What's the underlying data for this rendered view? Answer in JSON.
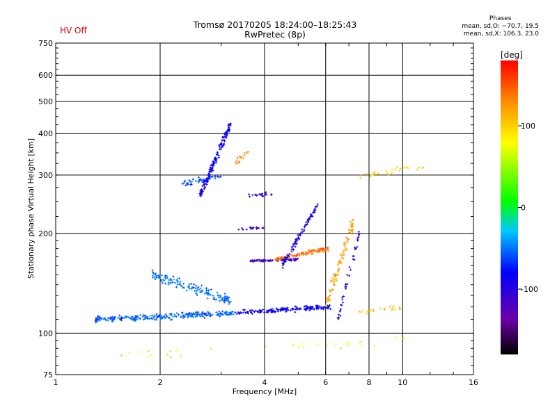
{
  "hv_status": "HV Off",
  "stats": {
    "heading": "Phases",
    "line1": "mean, sd,O: −70.7, 19.5",
    "line2": "mean, sd,X: 106.3, 23.0"
  },
  "colorbar": {
    "unit_label": "[deg]",
    "ticks": [
      100,
      0,
      -100
    ],
    "range": [
      -180,
      180
    ],
    "colormap": "rainbow: black-purple-blue-cyan-green-yellow-orange-red"
  },
  "chart_data": {
    "type": "scatter",
    "title": "Tromsø 20170205 18:24:00–18:25:43",
    "subtitle": "RwPretec (8p)",
    "xlabel": "Frequency [MHz]",
    "ylabel": "Stationary phase Virtual Height [km]",
    "xscale": "log",
    "yscale": "log",
    "xlim": [
      1,
      16
    ],
    "ylim": [
      75,
      750
    ],
    "xticks": [
      1,
      2,
      4,
      6,
      8,
      10,
      16
    ],
    "yticks": [
      75,
      100,
      200,
      300,
      400,
      500,
      600,
      750
    ],
    "grid": true,
    "traces": [
      {
        "x_range": [
          1.3,
          3.3
        ],
        "y_start": 110,
        "y_end": 115,
        "phase": -55,
        "spread": 0.03,
        "count": 260
      },
      {
        "x_range": [
          3.3,
          6.2
        ],
        "y_start": 115,
        "y_end": 120,
        "phase": -85,
        "spread": 0.025,
        "count": 160
      },
      {
        "x_range": [
          3.6,
          5.0
        ],
        "y_start": 165,
        "y_end": 167,
        "phase": -110,
        "spread": 0.01,
        "count": 80
      },
      {
        "x_range": [
          4.3,
          6.1
        ],
        "y_start": 167,
        "y_end": 180,
        "phase": 140,
        "spread": 0.02,
        "count": 110
      },
      {
        "x_range": [
          4.5,
          5.7
        ],
        "y_start": 160,
        "y_end": 245,
        "phase": -95,
        "spread": 0.04,
        "count": 90
      },
      {
        "x_range": [
          1.9,
          3.2
        ],
        "y_start": 150,
        "y_end": 125,
        "phase": -50,
        "spread": 0.05,
        "count": 140
      },
      {
        "x_range": [
          2.6,
          3.2
        ],
        "y_start": 260,
        "y_end": 430,
        "phase": -85,
        "spread": 0.05,
        "count": 160
      },
      {
        "x_range": [
          2.3,
          3.0
        ],
        "y_start": 280,
        "y_end": 300,
        "phase": -60,
        "spread": 0.03,
        "count": 40
      },
      {
        "x_range": [
          3.2,
          4.0
        ],
        "y_start": 205,
        "y_end": 208,
        "phase": -110,
        "spread": 0.02,
        "count": 20
      },
      {
        "x_range": [
          3.6,
          4.2
        ],
        "y_start": 260,
        "y_end": 262,
        "phase": -100,
        "spread": 0.02,
        "count": 20
      },
      {
        "x_range": [
          6.0,
          7.2
        ],
        "y_start": 120,
        "y_end": 215,
        "phase": 120,
        "spread": 0.08,
        "count": 90
      },
      {
        "x_range": [
          6.5,
          7.5
        ],
        "y_start": 110,
        "y_end": 200,
        "phase": -100,
        "spread": 0.06,
        "count": 40
      },
      {
        "x_range": [
          3.3,
          3.6
        ],
        "y_start": 330,
        "y_end": 350,
        "phase": 130,
        "spread": 0.04,
        "count": 14
      },
      {
        "x_range": [
          7.5,
          11.5
        ],
        "y_start": 295,
        "y_end": 320,
        "phase": 100,
        "spread": 0.03,
        "count": 30
      },
      {
        "x_range": [
          7.5,
          10.0
        ],
        "y_start": 115,
        "y_end": 120,
        "phase": 110,
        "spread": 0.03,
        "count": 20
      },
      {
        "x_range": [
          1.5,
          10.5
        ],
        "y_start": 85,
        "y_end": 95,
        "phase": 90,
        "spread": 0.05,
        "count": 30
      }
    ]
  }
}
